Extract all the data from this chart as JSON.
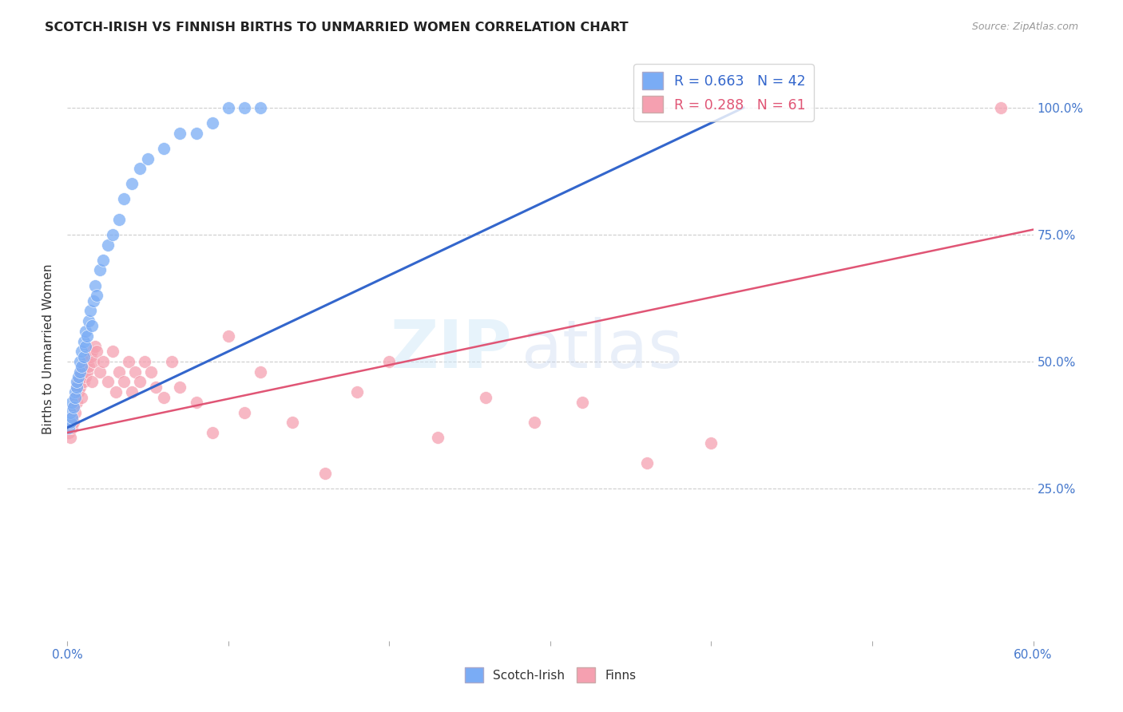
{
  "title": "SCOTCH-IRISH VS FINNISH BIRTHS TO UNMARRIED WOMEN CORRELATION CHART",
  "source": "Source: ZipAtlas.com",
  "ylabel": "Births to Unmarried Women",
  "blue_color": "#7aacf5",
  "pink_color": "#f5a0b0",
  "blue_line_color": "#3366cc",
  "pink_line_color": "#e05575",
  "watermark_zip": "ZIP",
  "watermark_atlas": "atlas",
  "background_color": "#ffffff",
  "grid_color": "#cccccc",
  "xlim": [
    0.0,
    0.6
  ],
  "ylim": [
    -0.05,
    1.1
  ],
  "ytick_positions": [
    0.25,
    0.5,
    0.75,
    1.0
  ],
  "ytick_labels": [
    "25.0%",
    "50.0%",
    "75.0%",
    "100.0%"
  ],
  "xtick_left_label": "0.0%",
  "xtick_right_label": "60.0%",
  "legend_blue": "R = 0.663   N = 42",
  "legend_pink": "R = 0.288   N = 61",
  "legend_label_blue": "Scotch-Irish",
  "legend_label_pink": "Finns",
  "si_x": [
    0.001,
    0.002,
    0.002,
    0.003,
    0.003,
    0.004,
    0.005,
    0.005,
    0.006,
    0.006,
    0.007,
    0.008,
    0.008,
    0.009,
    0.009,
    0.01,
    0.01,
    0.011,
    0.011,
    0.012,
    0.013,
    0.014,
    0.015,
    0.016,
    0.017,
    0.018,
    0.02,
    0.022,
    0.025,
    0.028,
    0.032,
    0.035,
    0.04,
    0.045,
    0.05,
    0.06,
    0.07,
    0.08,
    0.09,
    0.1,
    0.11,
    0.12
  ],
  "si_y": [
    0.37,
    0.38,
    0.4,
    0.39,
    0.42,
    0.41,
    0.44,
    0.43,
    0.45,
    0.46,
    0.47,
    0.48,
    0.5,
    0.49,
    0.52,
    0.51,
    0.54,
    0.53,
    0.56,
    0.55,
    0.58,
    0.6,
    0.57,
    0.62,
    0.65,
    0.63,
    0.68,
    0.7,
    0.73,
    0.75,
    0.78,
    0.82,
    0.85,
    0.88,
    0.9,
    0.92,
    0.95,
    0.95,
    0.97,
    1.0,
    1.0,
    1.0
  ],
  "fi_x": [
    0.001,
    0.002,
    0.003,
    0.003,
    0.004,
    0.004,
    0.005,
    0.005,
    0.006,
    0.006,
    0.007,
    0.007,
    0.008,
    0.008,
    0.009,
    0.009,
    0.01,
    0.01,
    0.011,
    0.012,
    0.012,
    0.013,
    0.014,
    0.015,
    0.015,
    0.016,
    0.017,
    0.018,
    0.02,
    0.022,
    0.025,
    0.028,
    0.03,
    0.032,
    0.035,
    0.038,
    0.04,
    0.042,
    0.045,
    0.048,
    0.052,
    0.055,
    0.06,
    0.065,
    0.07,
    0.08,
    0.09,
    0.1,
    0.11,
    0.12,
    0.14,
    0.16,
    0.18,
    0.2,
    0.23,
    0.26,
    0.29,
    0.32,
    0.36,
    0.4,
    0.58
  ],
  "fi_y": [
    0.36,
    0.35,
    0.37,
    0.39,
    0.38,
    0.41,
    0.4,
    0.43,
    0.42,
    0.45,
    0.44,
    0.46,
    0.45,
    0.47,
    0.43,
    0.48,
    0.46,
    0.49,
    0.47,
    0.48,
    0.5,
    0.49,
    0.51,
    0.46,
    0.52,
    0.5,
    0.53,
    0.52,
    0.48,
    0.5,
    0.46,
    0.52,
    0.44,
    0.48,
    0.46,
    0.5,
    0.44,
    0.48,
    0.46,
    0.5,
    0.48,
    0.45,
    0.43,
    0.5,
    0.45,
    0.42,
    0.36,
    0.55,
    0.4,
    0.48,
    0.38,
    0.28,
    0.44,
    0.5,
    0.35,
    0.43,
    0.38,
    0.42,
    0.3,
    0.34,
    1.0
  ],
  "line_si_x0": 0.0,
  "line_si_x1": 0.42,
  "line_si_y0": 0.37,
  "line_si_y1": 1.0,
  "line_fi_x0": 0.0,
  "line_fi_x1": 0.6,
  "line_fi_y0": 0.36,
  "line_fi_y1": 0.76
}
